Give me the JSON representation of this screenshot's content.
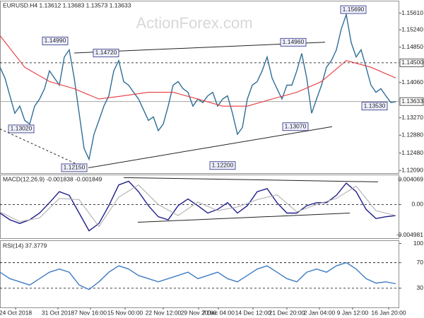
{
  "chart_data": [
    {
      "type": "line",
      "title": "EURUSD.H4 1.13612 1.13683 1.13573 1.13633",
      "watermark": "ActionForex.com",
      "xlim": [
        0,
        565
      ],
      "ylim": [
        1.1203,
        1.1589
      ],
      "yticks": [
        {
          "value": 1.1561,
          "label": "1.15610"
        },
        {
          "value": 1.1524,
          "label": "1.15240"
        },
        {
          "value": 1.1485,
          "label": "1.14850"
        },
        {
          "value": 1.1406,
          "label": "1.14060"
        },
        {
          "value": 1.1327,
          "label": "1.13270"
        },
        {
          "value": 1.1288,
          "label": "1.12880"
        },
        {
          "value": 1.1248,
          "label": "1.12480"
        },
        {
          "value": 1.1209,
          "label": "1.12090"
        }
      ],
      "series": [
        {
          "color": "#2f6e96",
          "x": [
            0,
            7,
            14,
            21,
            28,
            35,
            42,
            49,
            56,
            63,
            70,
            77,
            84,
            91,
            98,
            105,
            112,
            119,
            126,
            133,
            140,
            147,
            154,
            161,
            168,
            175,
            182,
            189,
            196,
            203,
            210,
            217,
            224,
            231,
            238,
            245,
            252,
            259,
            266,
            273,
            280,
            287,
            294,
            301,
            308,
            315,
            322,
            329,
            336,
            343,
            350,
            357,
            364,
            371,
            378,
            385,
            392,
            399,
            406,
            413,
            420,
            427,
            434,
            441,
            448,
            455,
            462,
            469,
            476,
            483,
            490,
            497,
            504,
            511,
            518,
            525,
            532,
            539,
            546,
            553,
            560
          ],
          "values": [
            1.144,
            1.1416,
            1.1376,
            1.1337,
            1.1353,
            1.1321,
            1.1313,
            1.1353,
            1.1369,
            1.1392,
            1.1432,
            1.1416,
            1.14,
            1.1463,
            1.1479,
            1.1416,
            1.1337,
            1.1258,
            1.1234,
            1.129,
            1.1321,
            1.1353,
            1.1376,
            1.1432,
            1.1455,
            1.1408,
            1.14,
            1.1384,
            1.1369,
            1.1345,
            1.1321,
            1.1329,
            1.1298,
            1.1313,
            1.1353,
            1.14,
            1.1408,
            1.1392,
            1.1384,
            1.1353,
            1.1369,
            1.1361,
            1.1376,
            1.1384,
            1.1353,
            1.1369,
            1.1376,
            1.1337,
            1.129,
            1.1305,
            1.1369,
            1.14,
            1.1408,
            1.1432,
            1.1463,
            1.1416,
            1.1392,
            1.1369,
            1.14,
            1.14,
            1.1432,
            1.1471,
            1.1416,
            1.1337,
            1.1369,
            1.14,
            1.144,
            1.1455,
            1.1479,
            1.1526,
            1.1558,
            1.1495,
            1.1463,
            1.1479,
            1.144,
            1.14,
            1.1384,
            1.1392,
            1.1376,
            1.1361,
            1.1363
          ]
        },
        {
          "color": "#e8383d",
          "x": [
            0,
            35,
            70,
            105,
            140,
            175,
            210,
            245,
            280,
            315,
            350,
            385,
            420,
            455,
            490,
            525,
            560
          ],
          "values": [
            1.1511,
            1.144,
            1.1408,
            1.1392,
            1.1369,
            1.1376,
            1.1384,
            1.1384,
            1.1369,
            1.1353,
            1.1353,
            1.1369,
            1.1384,
            1.1408,
            1.1455,
            1.144,
            1.1416
          ]
        }
      ],
      "hlines": [
        {
          "value": 1.145,
          "label": "1.14500",
          "dash": true,
          "color": "#000000"
        },
        {
          "value": 1.13633,
          "label": "1.13633",
          "dash": false,
          "color": "#999999"
        }
      ],
      "trendlines": [
        {
          "x": [
            105,
            460
          ],
          "values": [
            1.1472,
            1.1496
          ],
          "dash": false
        },
        {
          "x": [
            125,
            470
          ],
          "values": [
            1.1215,
            1.1307
          ],
          "dash": false
        },
        {
          "x": [
            0,
            120
          ],
          "values": [
            1.1302,
            1.1215
          ],
          "dash": true
        }
      ],
      "annotations": [
        {
          "x": 78,
          "value": 1.1499,
          "label": "1.14990"
        },
        {
          "x": 150,
          "value": 1.1472,
          "label": "1.14720"
        },
        {
          "x": 30,
          "value": 1.1302,
          "label": "1.13020"
        },
        {
          "x": 105,
          "value": 1.1215,
          "label": "1.12150"
        },
        {
          "x": 315,
          "value": 1.122,
          "label": "1.12200"
        },
        {
          "x": 415,
          "value": 1.1496,
          "label": "1.14960"
        },
        {
          "x": 500,
          "value": 1.1569,
          "label": "1.15690"
        },
        {
          "x": 418,
          "value": 1.1307,
          "label": "1.13070"
        },
        {
          "x": 530,
          "value": 1.1353,
          "label": "1.13530"
        }
      ]
    },
    {
      "type": "line",
      "title": "MACD(12,26,9) -0.001838 -0.001849",
      "xlim": [
        0,
        565
      ],
      "ylim": [
        -0.0055,
        0.0049
      ],
      "yticks": [
        0.004069,
        {
          "value": 0,
          "label": "0.00"
        },
        -0.004981
      ],
      "series": [
        {
          "color": "#1c1c8c",
          "x": [
            0,
            14,
            28,
            42,
            56,
            70,
            84,
            98,
            112,
            126,
            140,
            154,
            168,
            182,
            196,
            210,
            224,
            238,
            252,
            266,
            280,
            294,
            308,
            322,
            336,
            350,
            364,
            378,
            392,
            406,
            420,
            434,
            448,
            462,
            476,
            490,
            504,
            518,
            532,
            546,
            560
          ],
          "values": [
            -0.0014,
            -0.0025,
            -0.0031,
            -0.0025,
            -0.0014,
            0.0003,
            0.0021,
            0.0015,
            -0.0014,
            -0.0043,
            -0.0031,
            -0.0002,
            0.0032,
            0.0038,
            0.0021,
            -0.0002,
            -0.002,
            -0.0025,
            -0.0002,
            0.0009,
            -0.0002,
            -0.0014,
            -0.0008,
            0.0003,
            -0.0014,
            -0.0002,
            0.0021,
            0.0026,
            0.0003,
            -0.0014,
            -0.0014,
            -0.0002,
            0.0003,
            0.0003,
            0.0015,
            0.0035,
            0.0021,
            -0.0008,
            -0.0023,
            -0.002,
            -0.0018
          ]
        },
        {
          "color": "#b0b0b0",
          "x": [
            0,
            28,
            56,
            84,
            112,
            140,
            168,
            196,
            224,
            252,
            280,
            308,
            336,
            364,
            392,
            420,
            448,
            476,
            504,
            532,
            560
          ],
          "values": [
            -0.0012,
            -0.0028,
            -0.0022,
            0.001,
            0.0008,
            -0.0036,
            0.0012,
            0.0032,
            0,
            -0.0018,
            0.0004,
            -0.001,
            -0.0004,
            0.0008,
            0.0016,
            -0.0012,
            0,
            0.001,
            0.003,
            -0.001,
            -0.0018
          ]
        }
      ],
      "hlines": [
        {
          "value": 0,
          "dash": true,
          "color": "#000000"
        }
      ],
      "trendlines": [
        {
          "x": [
            175,
            535
          ],
          "values": [
            0.0044,
            0.0037
          ],
          "dash": false
        },
        {
          "x": [
            195,
            495
          ],
          "values": [
            -0.0029,
            -0.0014
          ],
          "dash": false
        }
      ]
    },
    {
      "type": "line",
      "title": "RSI(14) 37.3779",
      "xlim": [
        0,
        565
      ],
      "ylim": [
        0,
        105
      ],
      "yticks": [
        100,
        70,
        30
      ],
      "xticks": [
        {
          "value": 22,
          "label": "24 Oct 2018"
        },
        {
          "value": 82,
          "label": "31 Oct 2018"
        },
        {
          "value": 128,
          "label": "7 Nov 16:00"
        },
        {
          "value": 177,
          "label": "15 Nov 00:00"
        },
        {
          "value": 231,
          "label": "22 Nov 12:00"
        },
        {
          "value": 281,
          "label": "29 Nov 20:00"
        },
        {
          "value": 309,
          "label": "7 Dec 04:00"
        },
        {
          "value": 358,
          "label": "14 Dec 12:00"
        },
        {
          "value": 406,
          "label": "21 Dec 20:00"
        },
        {
          "value": 452,
          "label": "2 Jan 04:00"
        },
        {
          "value": 499,
          "label": "9 Jan 12:00"
        },
        {
          "value": 550,
          "label": "16 Jan 20:00"
        }
      ],
      "series": [
        {
          "color": "#3f7cc4",
          "x": [
            0,
            14,
            28,
            42,
            56,
            70,
            84,
            98,
            112,
            126,
            140,
            154,
            168,
            182,
            196,
            210,
            224,
            238,
            252,
            266,
            280,
            294,
            308,
            322,
            336,
            350,
            364,
            378,
            392,
            406,
            420,
            434,
            448,
            462,
            476,
            490,
            504,
            518,
            532,
            546,
            560
          ],
          "values": [
            55,
            45,
            40,
            35,
            45,
            55,
            60,
            55,
            35,
            28,
            40,
            55,
            65,
            60,
            50,
            45,
            40,
            45,
            50,
            55,
            45,
            50,
            55,
            45,
            40,
            50,
            60,
            65,
            55,
            45,
            40,
            55,
            60,
            55,
            65,
            70,
            60,
            45,
            38,
            40,
            37
          ]
        }
      ],
      "hlines": [
        {
          "value": 70,
          "dash": true,
          "color": "#000000"
        },
        {
          "value": 30,
          "dash": true,
          "color": "#000000"
        }
      ]
    }
  ]
}
